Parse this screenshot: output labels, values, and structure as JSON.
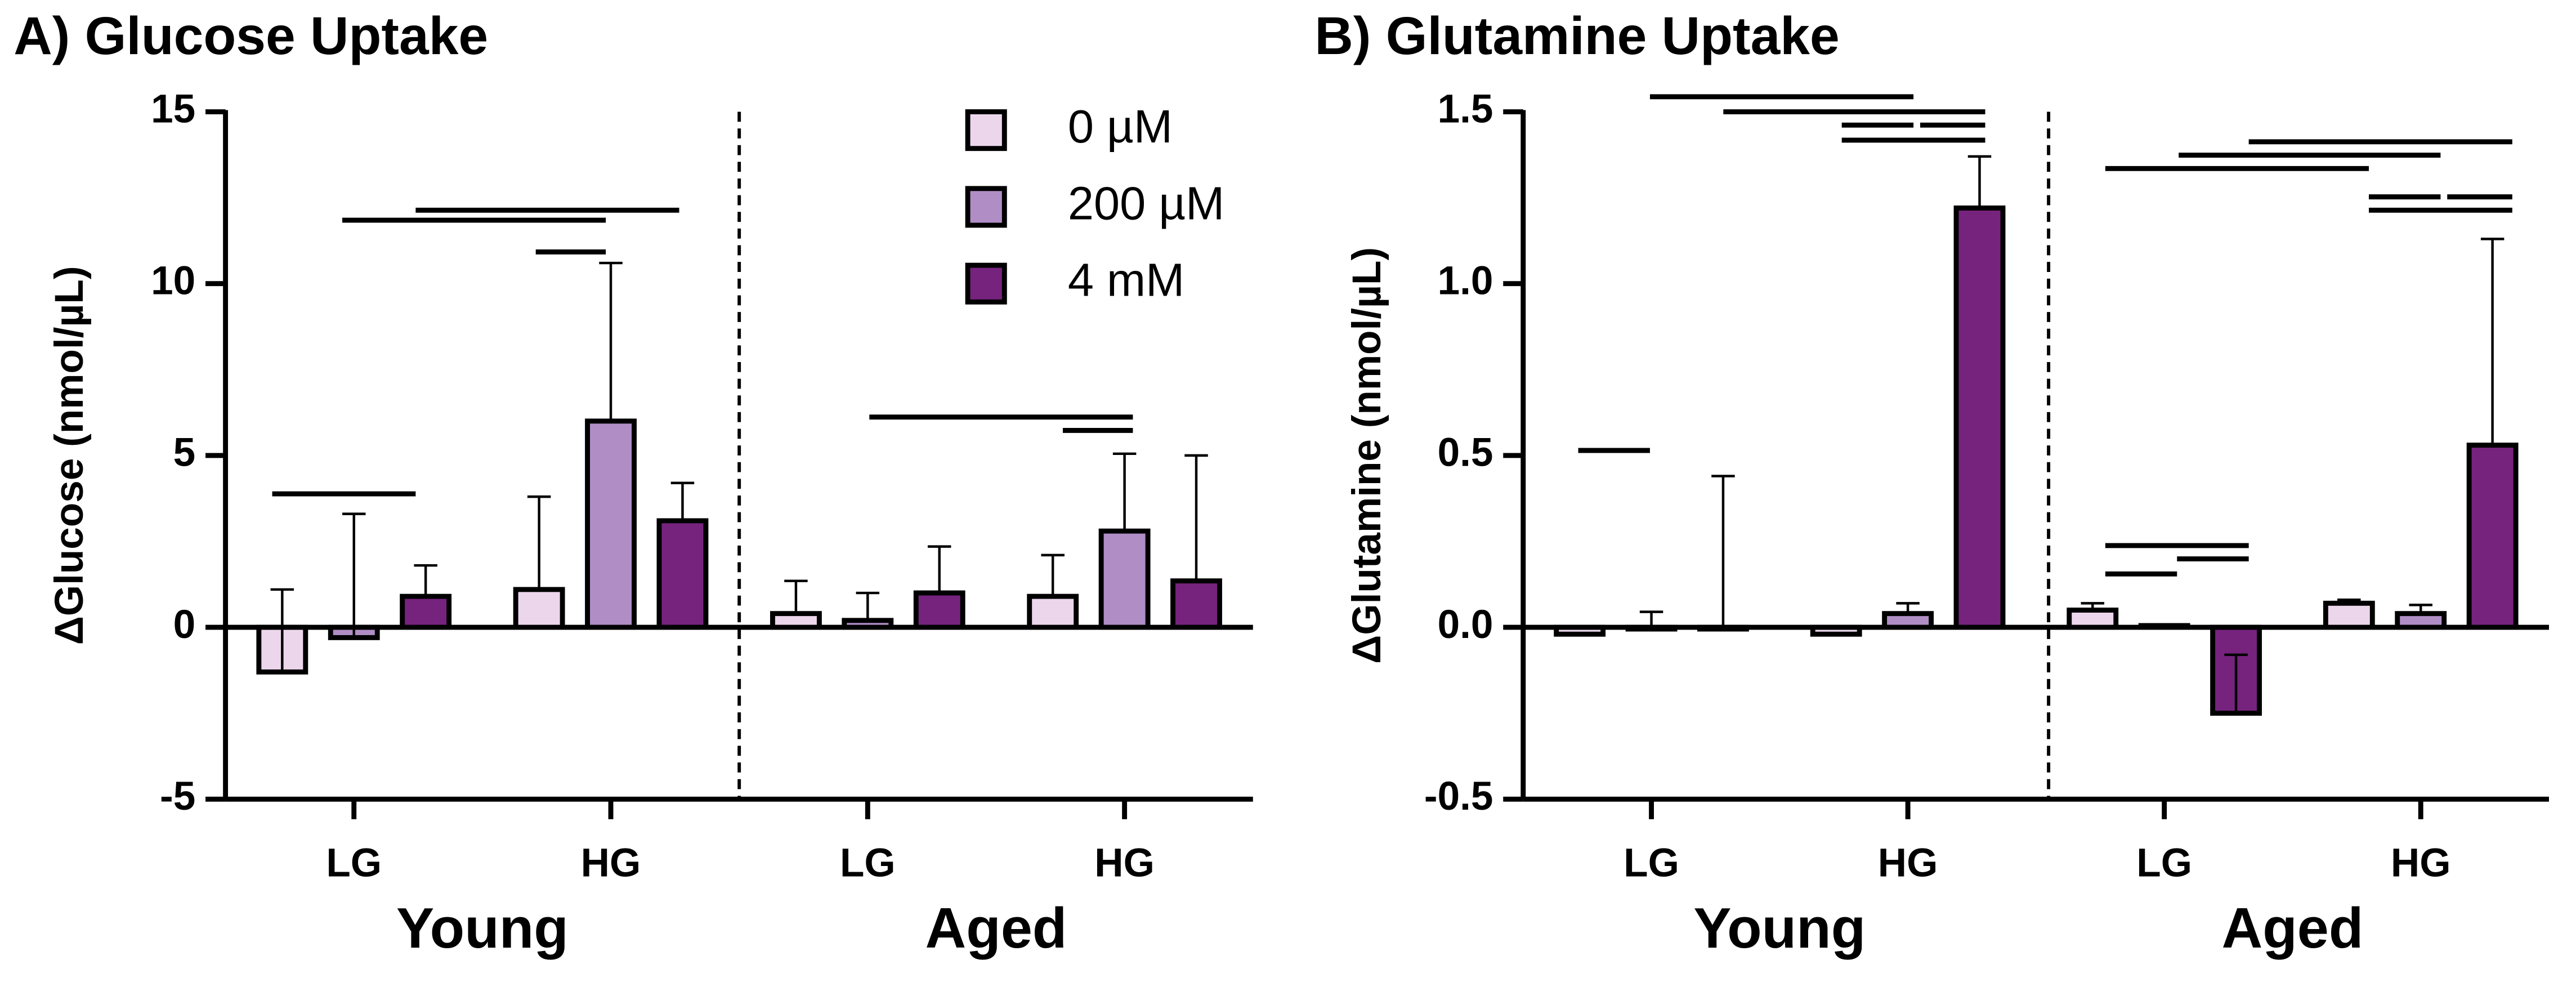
{
  "chart_data": [
    {
      "type": "bar",
      "title": "A) Glucose Uptake",
      "y_label": "ΔGlucose (nmol/µL)",
      "categories": [
        "LG",
        "HG",
        "LG",
        "HG"
      ],
      "groups": [
        "Young",
        "Aged"
      ],
      "ylim": [
        -5,
        15
      ],
      "yticks": [
        -5,
        0,
        5,
        10,
        15
      ],
      "series": [
        {
          "name": "0 µM",
          "color": "#ecd6ec",
          "values": [
            -1.3,
            1.1,
            0.4,
            0.9
          ],
          "errors": [
            2.4,
            2.7,
            0.95,
            1.2
          ]
        },
        {
          "name": "200 µM",
          "color": "#b08ec5",
          "values": [
            -0.3,
            6.0,
            0.2,
            2.8
          ],
          "errors": [
            3.6,
            4.6,
            0.8,
            2.25
          ]
        },
        {
          "name": "4 mM",
          "color": "#76237e",
          "values": [
            0.9,
            3.1,
            1.0,
            1.35
          ],
          "errors": [
            0.9,
            1.1,
            1.35,
            3.65
          ]
        }
      ]
    },
    {
      "type": "bar",
      "title": "B) Glutamine Uptake",
      "y_label": "ΔGlutamine (nmol/µL)",
      "categories": [
        "LG",
        "HG",
        "LG",
        "HG"
      ],
      "groups": [
        "Young",
        "Aged"
      ],
      "ylim": [
        -0.5,
        1.5
      ],
      "yticks": [
        -0.5,
        {
          "value": 0,
          "label": "0.0"
        },
        0.5,
        {
          "value": 1,
          "label": "1.0"
        },
        1.5
      ],
      "series": [
        {
          "color": "#ecd6ec",
          "values": [
            -0.02,
            -0.02,
            0.05,
            0.07
          ],
          "errors": [
            0,
            0,
            0.02,
            0.01
          ]
        },
        {
          "color": "#b08ec5",
          "values": [
            -0.005,
            0.04,
            0.005,
            0.04
          ],
          "errors": [
            0.05,
            0.03,
            0,
            0.025
          ]
        },
        {
          "color": "#76237e",
          "values": [
            -0.005,
            1.22,
            -0.25,
            0.53
          ],
          "errors": [
            0.445,
            0.15,
            0.17,
            0.6
          ]
        }
      ]
    }
  ]
}
